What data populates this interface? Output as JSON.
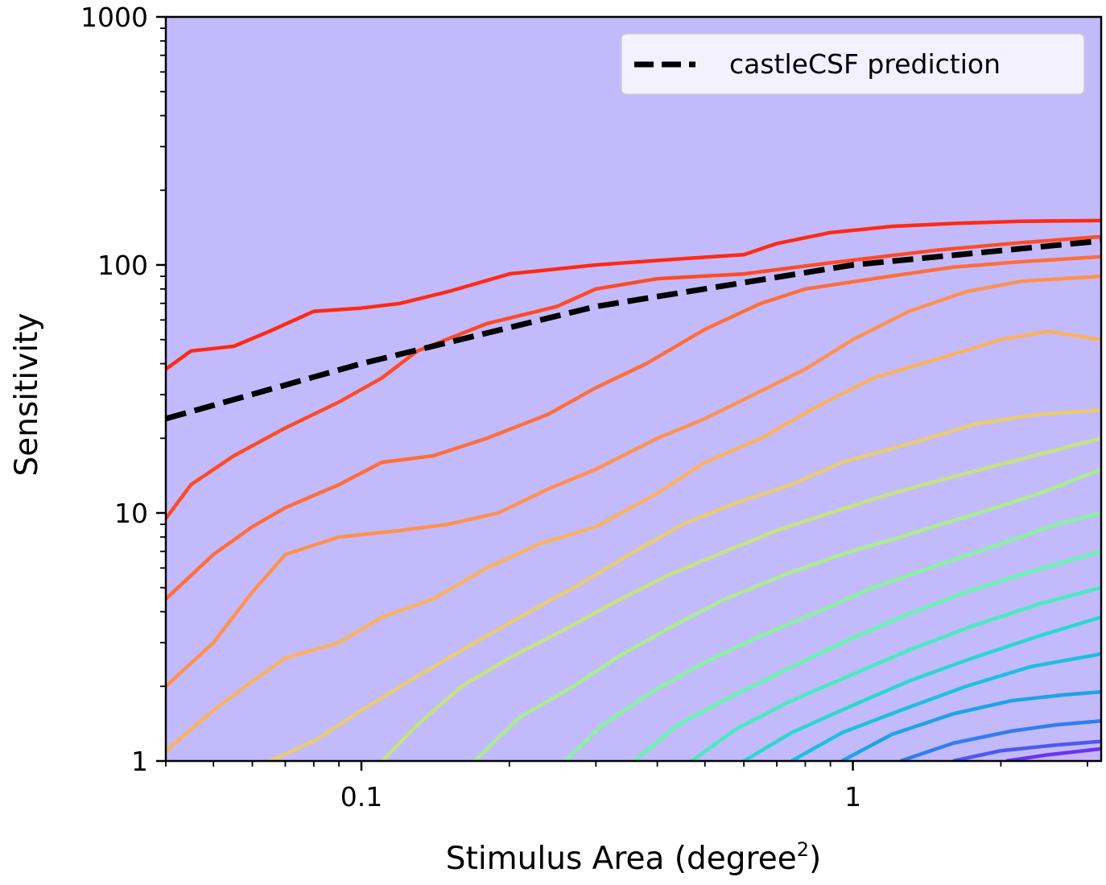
{
  "chart_data": {
    "type": "line",
    "title": "",
    "xlabel": "Stimulus Area (degree",
    "xlabel_sup": "2",
    "xlabel_close": ")",
    "ylabel": "Sensitivity",
    "xscale": "log",
    "yscale": "log",
    "xlim": [
      0.04,
      3.2
    ],
    "ylim": [
      1,
      1000
    ],
    "x_ticks": [
      {
        "value": 0.1,
        "label": "0.1"
      },
      {
        "value": 1,
        "label": "1"
      }
    ],
    "y_ticks": [
      {
        "value": 1,
        "label": "1"
      },
      {
        "value": 10,
        "label": "10"
      },
      {
        "value": 100,
        "label": "100"
      },
      {
        "value": 1000,
        "label": "1000"
      }
    ],
    "grid": false,
    "legend": {
      "placement": "top-right",
      "entries": [
        "castleCSF prediction"
      ]
    },
    "prediction": {
      "name": "castleCSF prediction",
      "style": "dashed",
      "color": "#000000",
      "points": [
        [
          0.04,
          24
        ],
        [
          0.1,
          40
        ],
        [
          0.3,
          68
        ],
        [
          1,
          100
        ],
        [
          3.2,
          125
        ]
      ]
    },
    "contours": [
      {
        "color": "#ff2a14",
        "fill": "#ffb5b3",
        "points": [
          [
            0.04,
            38
          ],
          [
            0.045,
            45
          ],
          [
            0.055,
            47
          ],
          [
            0.065,
            54
          ],
          [
            0.08,
            65
          ],
          [
            0.1,
            67
          ],
          [
            0.12,
            70
          ],
          [
            0.15,
            78
          ],
          [
            0.2,
            92
          ],
          [
            0.3,
            100
          ],
          [
            0.45,
            106
          ],
          [
            0.6,
            110
          ],
          [
            0.7,
            122
          ],
          [
            0.9,
            135
          ],
          [
            1.2,
            143
          ],
          [
            1.6,
            147
          ],
          [
            2.2,
            150
          ],
          [
            3.2,
            151
          ]
        ]
      },
      {
        "color": "#ff4b26",
        "fill": "#fec9b9",
        "points": [
          [
            0.04,
            9.5
          ],
          [
            0.045,
            13
          ],
          [
            0.055,
            17
          ],
          [
            0.07,
            22
          ],
          [
            0.09,
            28
          ],
          [
            0.11,
            35
          ],
          [
            0.13,
            45
          ],
          [
            0.18,
            58
          ],
          [
            0.25,
            68
          ],
          [
            0.3,
            80
          ],
          [
            0.4,
            88
          ],
          [
            0.6,
            92
          ],
          [
            0.9,
            102
          ],
          [
            1.5,
            115
          ],
          [
            2.2,
            123
          ],
          [
            3.2,
            130
          ]
        ]
      },
      {
        "color": "#ff6e3a",
        "fill": "#fed3be",
        "points": [
          [
            0.04,
            4.5
          ],
          [
            0.05,
            6.8
          ],
          [
            0.06,
            8.8
          ],
          [
            0.07,
            10.5
          ],
          [
            0.09,
            13
          ],
          [
            0.11,
            16
          ],
          [
            0.14,
            17
          ],
          [
            0.18,
            20
          ],
          [
            0.24,
            25
          ],
          [
            0.3,
            32
          ],
          [
            0.38,
            40
          ],
          [
            0.5,
            55
          ],
          [
            0.65,
            70
          ],
          [
            0.8,
            80
          ],
          [
            1.1,
            88
          ],
          [
            1.6,
            98
          ],
          [
            2.2,
            103
          ],
          [
            3.2,
            108
          ]
        ]
      },
      {
        "color": "#ff9150",
        "fill": "#feddc4",
        "points": [
          [
            0.04,
            2
          ],
          [
            0.05,
            3
          ],
          [
            0.06,
            4.8
          ],
          [
            0.07,
            6.8
          ],
          [
            0.09,
            8
          ],
          [
            0.12,
            8.5
          ],
          [
            0.15,
            9
          ],
          [
            0.19,
            10
          ],
          [
            0.24,
            12.5
          ],
          [
            0.3,
            15
          ],
          [
            0.4,
            20
          ],
          [
            0.5,
            24
          ],
          [
            0.65,
            31
          ],
          [
            0.8,
            38
          ],
          [
            1.0,
            50
          ],
          [
            1.3,
            65
          ],
          [
            1.7,
            78
          ],
          [
            2.2,
            86
          ],
          [
            3.2,
            90
          ]
        ]
      },
      {
        "color": "#fbb25f",
        "fill": "#fae4c8",
        "points": [
          [
            0.04,
            1.1
          ],
          [
            0.05,
            1.6
          ],
          [
            0.06,
            2.1
          ],
          [
            0.07,
            2.6
          ],
          [
            0.09,
            3.0
          ],
          [
            0.11,
            3.8
          ],
          [
            0.14,
            4.5
          ],
          [
            0.18,
            6
          ],
          [
            0.23,
            7.5
          ],
          [
            0.3,
            8.8
          ],
          [
            0.4,
            12
          ],
          [
            0.5,
            16
          ],
          [
            0.65,
            20
          ],
          [
            0.85,
            27
          ],
          [
            1.1,
            35
          ],
          [
            1.5,
            42
          ],
          [
            2.0,
            50
          ],
          [
            2.5,
            54
          ],
          [
            3.2,
            50
          ]
        ]
      },
      {
        "color": "#e8cc70",
        "fill": "#f4ecd0",
        "points": [
          [
            0.065,
            1
          ],
          [
            0.08,
            1.2
          ],
          [
            0.1,
            1.6
          ],
          [
            0.13,
            2.2
          ],
          [
            0.17,
            3
          ],
          [
            0.22,
            4
          ],
          [
            0.28,
            5.2
          ],
          [
            0.36,
            7
          ],
          [
            0.45,
            9
          ],
          [
            0.58,
            11
          ],
          [
            0.75,
            13
          ],
          [
            0.95,
            16
          ],
          [
            1.3,
            19
          ],
          [
            1.8,
            23
          ],
          [
            2.4,
            25
          ],
          [
            3.2,
            26
          ]
        ]
      },
      {
        "color": "#c7e27f",
        "fill": "#ecf2d8",
        "points": [
          [
            0.11,
            1
          ],
          [
            0.13,
            1.4
          ],
          [
            0.16,
            2
          ],
          [
            0.2,
            2.6
          ],
          [
            0.26,
            3.4
          ],
          [
            0.33,
            4.4
          ],
          [
            0.42,
            5.6
          ],
          [
            0.55,
            7
          ],
          [
            0.7,
            8.5
          ],
          [
            0.9,
            10
          ],
          [
            1.2,
            12
          ],
          [
            1.6,
            14
          ],
          [
            2.2,
            16.5
          ],
          [
            3.2,
            20
          ]
        ]
      },
      {
        "color": "#a9ed8d",
        "fill": "#e4f6de",
        "points": [
          [
            0.17,
            1
          ],
          [
            0.21,
            1.5
          ],
          [
            0.27,
            2
          ],
          [
            0.34,
            2.7
          ],
          [
            0.43,
            3.5
          ],
          [
            0.55,
            4.5
          ],
          [
            0.72,
            5.6
          ],
          [
            0.95,
            6.8
          ],
          [
            1.3,
            8.2
          ],
          [
            1.8,
            10
          ],
          [
            2.4,
            12
          ],
          [
            3.2,
            15
          ]
        ]
      },
      {
        "color": "#86f39c",
        "fill": "#dcf7e2",
        "points": [
          [
            0.26,
            1
          ],
          [
            0.31,
            1.4
          ],
          [
            0.39,
            1.9
          ],
          [
            0.5,
            2.5
          ],
          [
            0.65,
            3.2
          ],
          [
            0.85,
            4
          ],
          [
            1.1,
            5
          ],
          [
            1.5,
            6.2
          ],
          [
            2.0,
            7.5
          ],
          [
            2.6,
            9
          ],
          [
            3.2,
            10
          ]
        ]
      },
      {
        "color": "#66f5ae",
        "fill": "#d4f8e8",
        "points": [
          [
            0.36,
            1
          ],
          [
            0.44,
            1.4
          ],
          [
            0.56,
            1.8
          ],
          [
            0.72,
            2.3
          ],
          [
            0.95,
            3
          ],
          [
            1.25,
            3.8
          ],
          [
            1.7,
            4.8
          ],
          [
            2.3,
            5.8
          ],
          [
            3.2,
            7
          ]
        ]
      },
      {
        "color": "#48ebbe",
        "fill": "#ccf6ed",
        "points": [
          [
            0.47,
            1
          ],
          [
            0.58,
            1.35
          ],
          [
            0.75,
            1.75
          ],
          [
            0.98,
            2.2
          ],
          [
            1.3,
            2.8
          ],
          [
            1.75,
            3.5
          ],
          [
            2.4,
            4.3
          ],
          [
            3.2,
            5
          ]
        ]
      },
      {
        "color": "#2ad8d0",
        "fill": "#c4eff3",
        "points": [
          [
            0.6,
            1
          ],
          [
            0.75,
            1.3
          ],
          [
            0.98,
            1.65
          ],
          [
            1.3,
            2.1
          ],
          [
            1.75,
            2.6
          ],
          [
            2.4,
            3.2
          ],
          [
            3.2,
            3.8
          ]
        ]
      },
      {
        "color": "#1cc0e0",
        "fill": "#bde6f6",
        "points": [
          [
            0.75,
            1
          ],
          [
            0.95,
            1.3
          ],
          [
            1.25,
            1.6
          ],
          [
            1.7,
            2
          ],
          [
            2.3,
            2.4
          ],
          [
            3.2,
            2.7
          ]
        ]
      },
      {
        "color": "#1da3ea",
        "fill": "#b7dcf8",
        "points": [
          [
            0.95,
            1
          ],
          [
            1.2,
            1.28
          ],
          [
            1.6,
            1.55
          ],
          [
            2.1,
            1.75
          ],
          [
            2.7,
            1.85
          ],
          [
            3.2,
            1.9
          ]
        ]
      },
      {
        "color": "#2f7ff0",
        "fill": "#b8cefa",
        "points": [
          [
            1.25,
            1
          ],
          [
            1.6,
            1.18
          ],
          [
            2.1,
            1.32
          ],
          [
            2.6,
            1.4
          ],
          [
            3.2,
            1.45
          ]
        ]
      },
      {
        "color": "#4f58f2",
        "fill": "#bdc3fb",
        "points": [
          [
            1.6,
            1
          ],
          [
            2.0,
            1.1
          ],
          [
            2.6,
            1.16
          ],
          [
            3.2,
            1.2
          ]
        ]
      },
      {
        "color": "#6a34f0",
        "fill": "#c3bafc",
        "points": [
          [
            2.05,
            1
          ],
          [
            2.5,
            1.06
          ],
          [
            3.2,
            1.12
          ]
        ]
      }
    ]
  }
}
